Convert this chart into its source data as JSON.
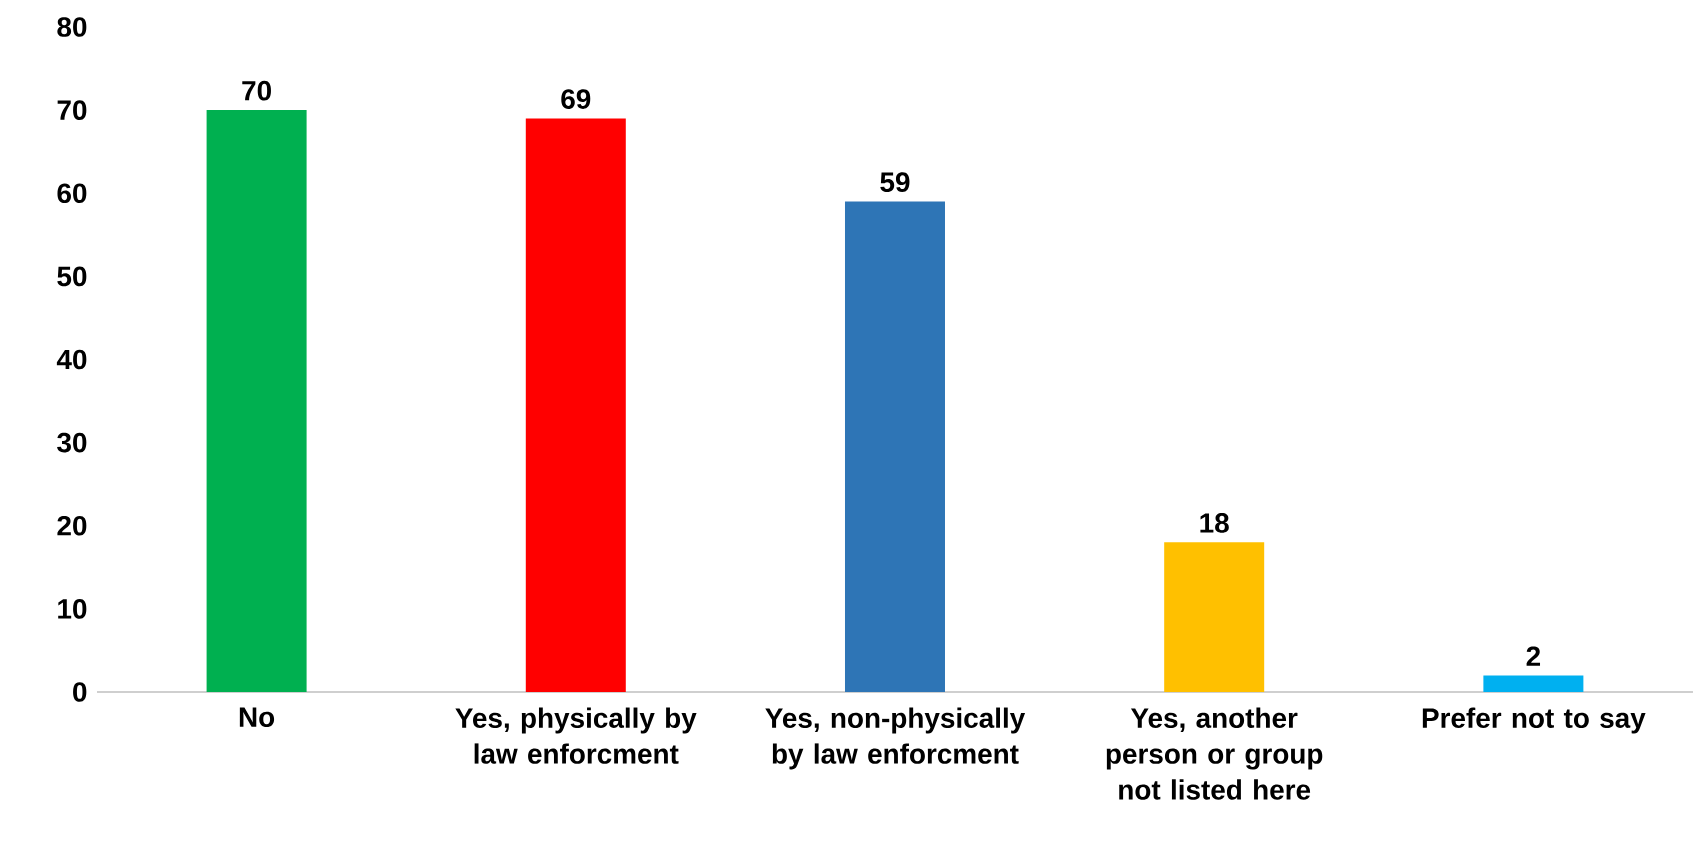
{
  "chart_data": {
    "type": "bar",
    "categories": [
      "No",
      "Yes, physically by law enforcment",
      "Yes, non-physically by law enforcment",
      "Yes, another person or group not listed here",
      "Prefer not to say"
    ],
    "values": [
      70,
      69,
      59,
      18,
      2
    ],
    "colors": [
      "#00b050",
      "#ff0000",
      "#2e75b6",
      "#ffc000",
      "#00b0f0"
    ],
    "ylim": [
      0,
      80
    ],
    "yticks": [
      0,
      10,
      20,
      30,
      40,
      50,
      60,
      70,
      80
    ],
    "data_labels": true
  }
}
